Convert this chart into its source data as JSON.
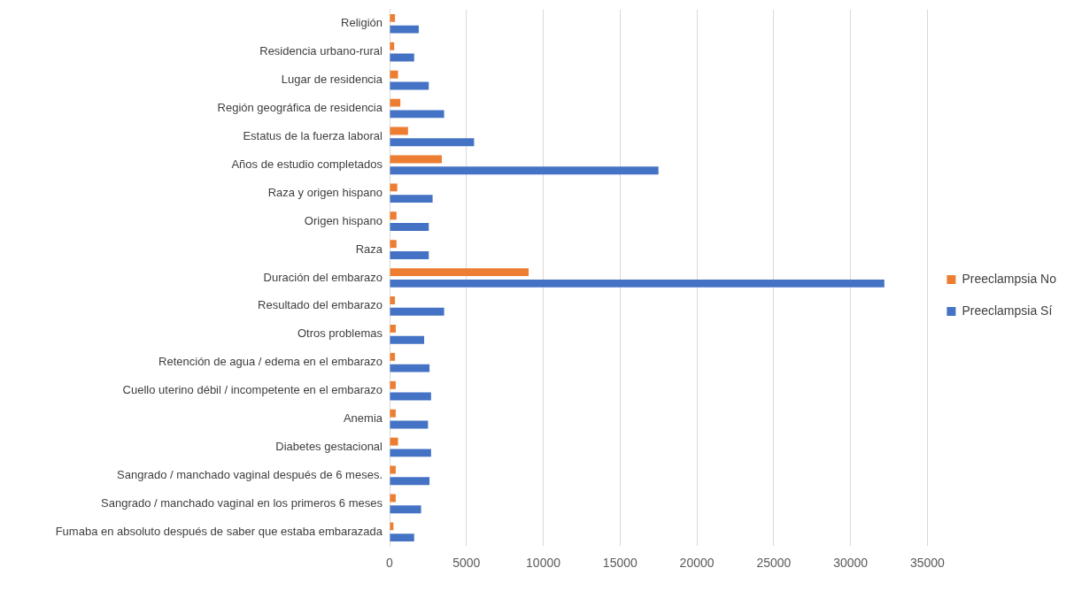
{
  "chart_data": {
    "type": "bar",
    "orientation": "horizontal",
    "categories": [
      "Religión",
      "Residencia urbano-rural",
      "Lugar de residencia",
      "Región geográfica de residencia",
      "Estatus de la fuerza laboral",
      "Años de estudio completados",
      "Raza y origen hispano",
      "Origen hispano",
      "Raza",
      "Duración del embarazo",
      "Resultado del embarazo",
      "Otros problemas",
      "Retención de agua / edema en el embarazo",
      "Cuello uterino débil / incompetente en el embarazo",
      "Anemia",
      "Diabetes gestacional",
      "Sangrado / manchado vaginal después de 6 meses.",
      "Sangrado / manchado vaginal en los primeros 6 meses",
      "Fumaba en absoluto después de saber que estaba embarazada"
    ],
    "series": [
      {
        "name": "Preeclampsia No",
        "color": "#ed7d31",
        "values": [
          350,
          300,
          550,
          700,
          1200,
          3400,
          500,
          450,
          450,
          9050,
          350,
          400,
          350,
          400,
          400,
          550,
          400,
          400,
          250
        ]
      },
      {
        "name": "Preeclampsia Sí",
        "color": "#4472c4",
        "values": [
          1900,
          1600,
          2550,
          3550,
          5500,
          17500,
          2800,
          2550,
          2550,
          32200,
          3550,
          2250,
          2600,
          2700,
          2500,
          2700,
          2600,
          2050,
          1600
        ]
      }
    ],
    "xlim": [
      0,
      35000
    ],
    "xticks": [
      0,
      5000,
      10000,
      15000,
      20000,
      25000,
      30000,
      35000
    ],
    "grid": "x",
    "legend": "right"
  }
}
